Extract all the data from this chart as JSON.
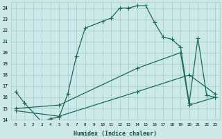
{
  "xlabel": "Humidex (Indice chaleur)",
  "background_color": "#cce8e8",
  "grid_color": "#aacece",
  "line_color": "#1a6a5a",
  "xlim": [
    -0.5,
    23.5
  ],
  "ylim": [
    14,
    24.5
  ],
  "xticks": [
    0,
    1,
    2,
    3,
    4,
    5,
    6,
    7,
    8,
    9,
    10,
    11,
    12,
    13,
    14,
    15,
    16,
    17,
    18,
    19,
    20,
    21,
    22,
    23
  ],
  "yticks": [
    14,
    15,
    16,
    17,
    18,
    19,
    20,
    21,
    22,
    23,
    24
  ],
  "curve1_x": [
    0,
    1,
    3,
    4,
    5,
    6,
    7,
    8,
    10,
    11,
    12,
    13,
    14,
    15,
    16,
    17,
    18,
    19,
    20,
    21,
    22,
    23
  ],
  "curve1_y": [
    16.5,
    15.5,
    13.8,
    14.1,
    14.2,
    16.3,
    19.7,
    22.2,
    22.8,
    23.1,
    24.0,
    24.0,
    24.2,
    24.2,
    22.7,
    21.4,
    21.2,
    20.5,
    15.5,
    21.3,
    16.2,
    16.0
  ],
  "curve2_x": [
    0,
    5,
    14,
    19,
    20,
    23
  ],
  "curve2_y": [
    15.0,
    15.3,
    18.6,
    20.0,
    15.3,
    16.0
  ],
  "curve3_x": [
    0,
    5,
    14,
    20,
    23
  ],
  "curve3_y": [
    14.8,
    14.3,
    16.5,
    18.0,
    16.3
  ]
}
